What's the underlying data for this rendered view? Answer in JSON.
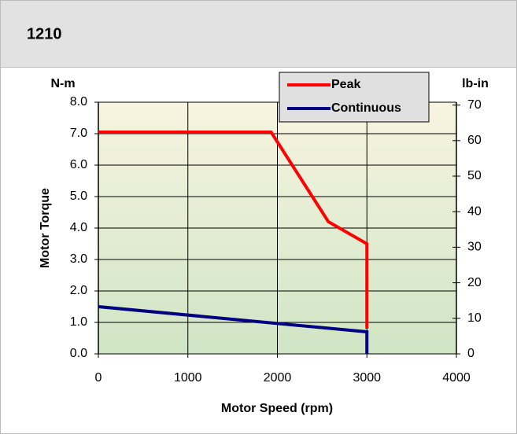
{
  "header": {
    "title": "1210"
  },
  "chart_data": {
    "type": "line",
    "ylabel": "Motor Torque",
    "xlabel": "Motor Speed (rpm)",
    "y_unit": "N-m",
    "y2_unit": "lb-in",
    "xlim": [
      0,
      4000
    ],
    "xticks": [
      0,
      1000,
      2000,
      3000,
      4000
    ],
    "ylim": [
      0,
      8
    ],
    "yticks": [
      {
        "value": 0,
        "label": "0.0"
      },
      {
        "value": 1,
        "label": "1.0"
      },
      {
        "value": 2,
        "label": "2.0"
      },
      {
        "value": 3,
        "label": "3.0"
      },
      {
        "value": 4,
        "label": "4.0"
      },
      {
        "value": 5,
        "label": "5.0"
      },
      {
        "value": 6,
        "label": "6.0"
      },
      {
        "value": 7,
        "label": "7.0"
      },
      {
        "value": 8,
        "label": "8.0"
      }
    ],
    "y2lim": [
      0,
      70.8
    ],
    "y2ticks": [
      0,
      10,
      20,
      30,
      40,
      50,
      60,
      70
    ],
    "grid": true,
    "legend": "top-right",
    "series": [
      {
        "name": "Peak",
        "color": "#ff0000",
        "x": [
          0,
          1930,
          2570,
          3000,
          3000
        ],
        "values": [
          7.05,
          7.05,
          4.2,
          3.5,
          0.8
        ]
      },
      {
        "name": "Continuous",
        "color": "#000080",
        "x": [
          0,
          3000,
          3000
        ],
        "values": [
          1.5,
          0.7,
          0
        ]
      }
    ]
  }
}
